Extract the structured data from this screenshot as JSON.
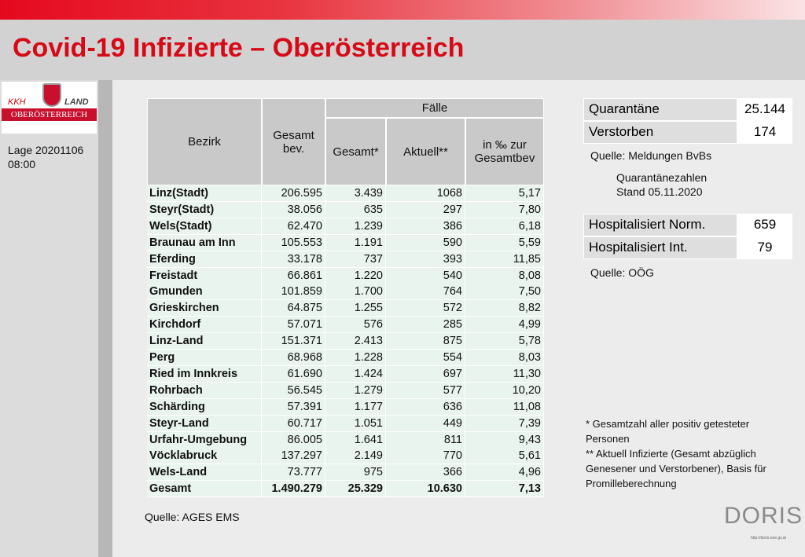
{
  "header": {
    "title": "Covid-19 Infizierte – Oberösterreich"
  },
  "logo": {
    "kkh": "KKH",
    "land": "LAND",
    "region": "OBERÖSTERREICH"
  },
  "sidebar": {
    "lage": "Lage 20201106",
    "time": "08:00"
  },
  "table": {
    "headers": {
      "bezirk": "Bezirk",
      "bev": [
        "Gesamt",
        "bev."
      ],
      "faelle": "Fälle",
      "gesamt": "Gesamt*",
      "aktuell": "Aktuell**",
      "promille": [
        "in ‰ zur",
        "Gesamtbev"
      ]
    },
    "rows": [
      [
        "Linz(Stadt)",
        "206.595",
        "3.439",
        "1068",
        "5,17"
      ],
      [
        "Steyr(Stadt)",
        "38.056",
        "635",
        "297",
        "7,80"
      ],
      [
        "Wels(Stadt)",
        "62.470",
        "1.239",
        "386",
        "6,18"
      ],
      [
        "Braunau am Inn",
        "105.553",
        "1.191",
        "590",
        "5,59"
      ],
      [
        "Eferding",
        "33.178",
        "737",
        "393",
        "11,85"
      ],
      [
        "Freistadt",
        "66.861",
        "1.220",
        "540",
        "8,08"
      ],
      [
        "Gmunden",
        "101.859",
        "1.700",
        "764",
        "7,50"
      ],
      [
        "Grieskirchen",
        "64.875",
        "1.255",
        "572",
        "8,82"
      ],
      [
        "Kirchdorf",
        "57.071",
        "576",
        "285",
        "4,99"
      ],
      [
        "Linz-Land",
        "151.371",
        "2.413",
        "875",
        "5,78"
      ],
      [
        "Perg",
        "68.968",
        "1.228",
        "554",
        "8,03"
      ],
      [
        "Ried im Innkreis",
        "61.690",
        "1.424",
        "697",
        "11,30"
      ],
      [
        "Rohrbach",
        "56.545",
        "1.279",
        "577",
        "10,20"
      ],
      [
        "Schärding",
        "57.391",
        "1.177",
        "636",
        "11,08"
      ],
      [
        "Steyr-Land",
        "60.717",
        "1.051",
        "449",
        "7,39"
      ],
      [
        "Urfahr-Umgebung",
        "86.005",
        "1.641",
        "811",
        "9,43"
      ],
      [
        "Vöcklabruck",
        "137.297",
        "2.149",
        "770",
        "5,61"
      ],
      [
        "Wels-Land",
        "73.777",
        "975",
        "366",
        "4,96"
      ]
    ],
    "total": [
      "Gesamt",
      "1.490.279",
      "25.329",
      "10.630",
      "7,13"
    ],
    "source": "Quelle: AGES EMS"
  },
  "quarantine": {
    "rows": [
      [
        "Quarantäne",
        "25.144"
      ],
      [
        "Verstorben",
        "174"
      ]
    ],
    "source": "Quelle: Meldungen BvBs",
    "note": [
      "Quarantänezahlen",
      "Stand 05.11.2020"
    ]
  },
  "hospital": {
    "rows": [
      [
        "Hospitalisiert Norm.",
        "659"
      ],
      [
        "Hospitalisiert Int.",
        "79"
      ]
    ],
    "source": "Quelle: OÖG"
  },
  "footnotes": [
    [
      "* Gesamtzahl aller positiv getesteter",
      "Personen"
    ],
    [
      "** Aktuell Infizierte (Gesamt abzüglich",
      "Genesener und Verstorbener), Basis für",
      "Promilleberechnung"
    ]
  ],
  "doris": {
    "name": "DORIS",
    "url": "http://doris.ooe.gv.at"
  }
}
